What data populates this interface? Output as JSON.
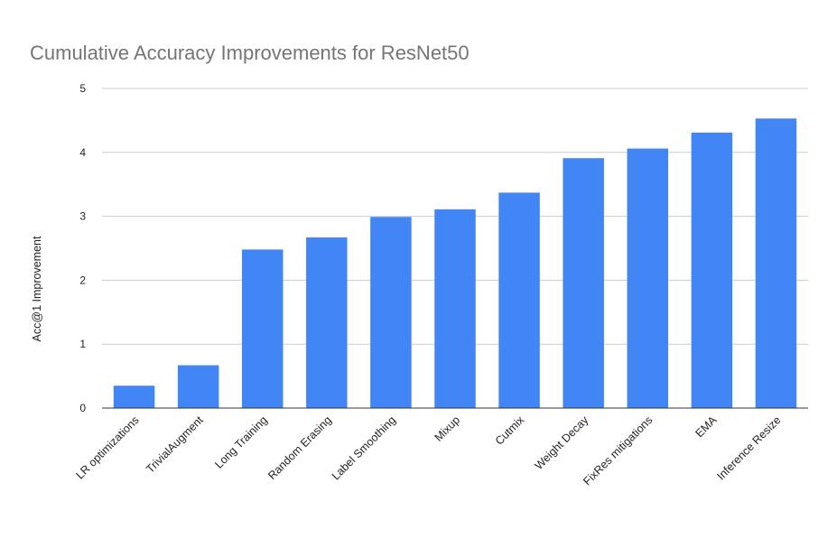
{
  "chart_data": {
    "type": "bar",
    "title": "Cumulative Accuracy Improvements for ResNet50",
    "xlabel": "",
    "ylabel": "Acc@1 Improvement",
    "categories": [
      "LR optimizations",
      "TrivialAugment",
      "Long Training",
      "Random Erasing",
      "Label Smoothing",
      "Mixup",
      "Cutmix",
      "Weight Decay",
      "FixRes mitigations",
      "EMA",
      "Inference Resize"
    ],
    "values": [
      0.35,
      0.67,
      2.48,
      2.67,
      2.99,
      3.11,
      3.37,
      3.91,
      4.06,
      4.31,
      4.53
    ],
    "ylim": [
      0,
      5
    ],
    "yticks": [
      0,
      1,
      2,
      3,
      4,
      5
    ],
    "grid": true,
    "legend": "none",
    "bar_color": "#4285f4"
  }
}
